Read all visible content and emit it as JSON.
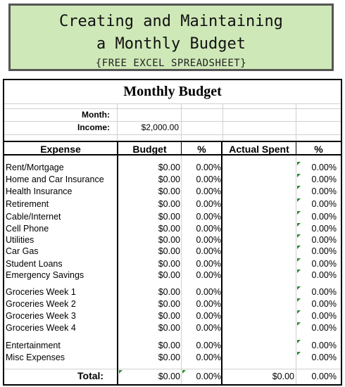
{
  "banner": {
    "line1": "Creating and Maintaining",
    "line2": "a Monthly Budget",
    "subtitle": "{FREE EXCEL SPREADSHEET}"
  },
  "sheet": {
    "title": "Monthly Budget",
    "month_label": "Month:",
    "month_value": "",
    "income_label": "Income:",
    "income_value": "$2,000.00",
    "headers": {
      "expense": "Expense",
      "budget": "Budget",
      "pct": "%",
      "actual": "Actual Spent",
      "pct2": "%"
    },
    "rows": [
      {
        "name": "Rent/Mortgage",
        "budget": "$0.00",
        "pct": "0.00%",
        "actual": "",
        "pct2": "0.00%"
      },
      {
        "name": "Home and Car Insurance",
        "budget": "$0.00",
        "pct": "0.00%",
        "actual": "",
        "pct2": "0.00%"
      },
      {
        "name": "Health Insurance",
        "budget": "$0.00",
        "pct": "0.00%",
        "actual": "",
        "pct2": "0.00%"
      },
      {
        "name": "Retirement",
        "budget": "$0.00",
        "pct": "0.00%",
        "actual": "",
        "pct2": "0.00%"
      },
      {
        "name": "Cable/Internet",
        "budget": "$0.00",
        "pct": "0.00%",
        "actual": "",
        "pct2": "0.00%"
      },
      {
        "name": "Cell Phone",
        "budget": "$0.00",
        "pct": "0.00%",
        "actual": "",
        "pct2": "0.00%"
      },
      {
        "name": "Utilities",
        "budget": "$0.00",
        "pct": "0.00%",
        "actual": "",
        "pct2": "0.00%"
      },
      {
        "name": "Car Gas",
        "budget": "$0.00",
        "pct": "0.00%",
        "actual": "",
        "pct2": "0.00%"
      },
      {
        "name": "Student Loans",
        "budget": "$0.00",
        "pct": "0.00%",
        "actual": "",
        "pct2": "0.00%"
      },
      {
        "name": "Emergency Savings",
        "budget": "$0.00",
        "pct": "0.00%",
        "actual": "",
        "pct2": "0.00%"
      },
      {
        "name": "Groceries Week 1",
        "budget": "$0.00",
        "pct": "0.00%",
        "actual": "",
        "pct2": "0.00%"
      },
      {
        "name": "Groceries Week 2",
        "budget": "$0.00",
        "pct": "0.00%",
        "actual": "",
        "pct2": "0.00%"
      },
      {
        "name": "Groceries Week 3",
        "budget": "$0.00",
        "pct": "0.00%",
        "actual": "",
        "pct2": "0.00%"
      },
      {
        "name": "Groceries Week 4",
        "budget": "$0.00",
        "pct": "0.00%",
        "actual": "",
        "pct2": "0.00%"
      },
      {
        "name": "Entertainment",
        "budget": "$0.00",
        "pct": "0.00%",
        "actual": "",
        "pct2": "0.00%"
      },
      {
        "name": "Misc Expenses",
        "budget": "$0.00",
        "pct": "0.00%",
        "actual": "",
        "pct2": "0.00%"
      }
    ],
    "total": {
      "label": "Total:",
      "budget": "$0.00",
      "pct": "0.00%",
      "actual": "$0.00",
      "pct2": "0.00%"
    },
    "colors": {
      "banner_bg": "#cfe8b8",
      "comment_marker": "#2a8a2a"
    }
  }
}
